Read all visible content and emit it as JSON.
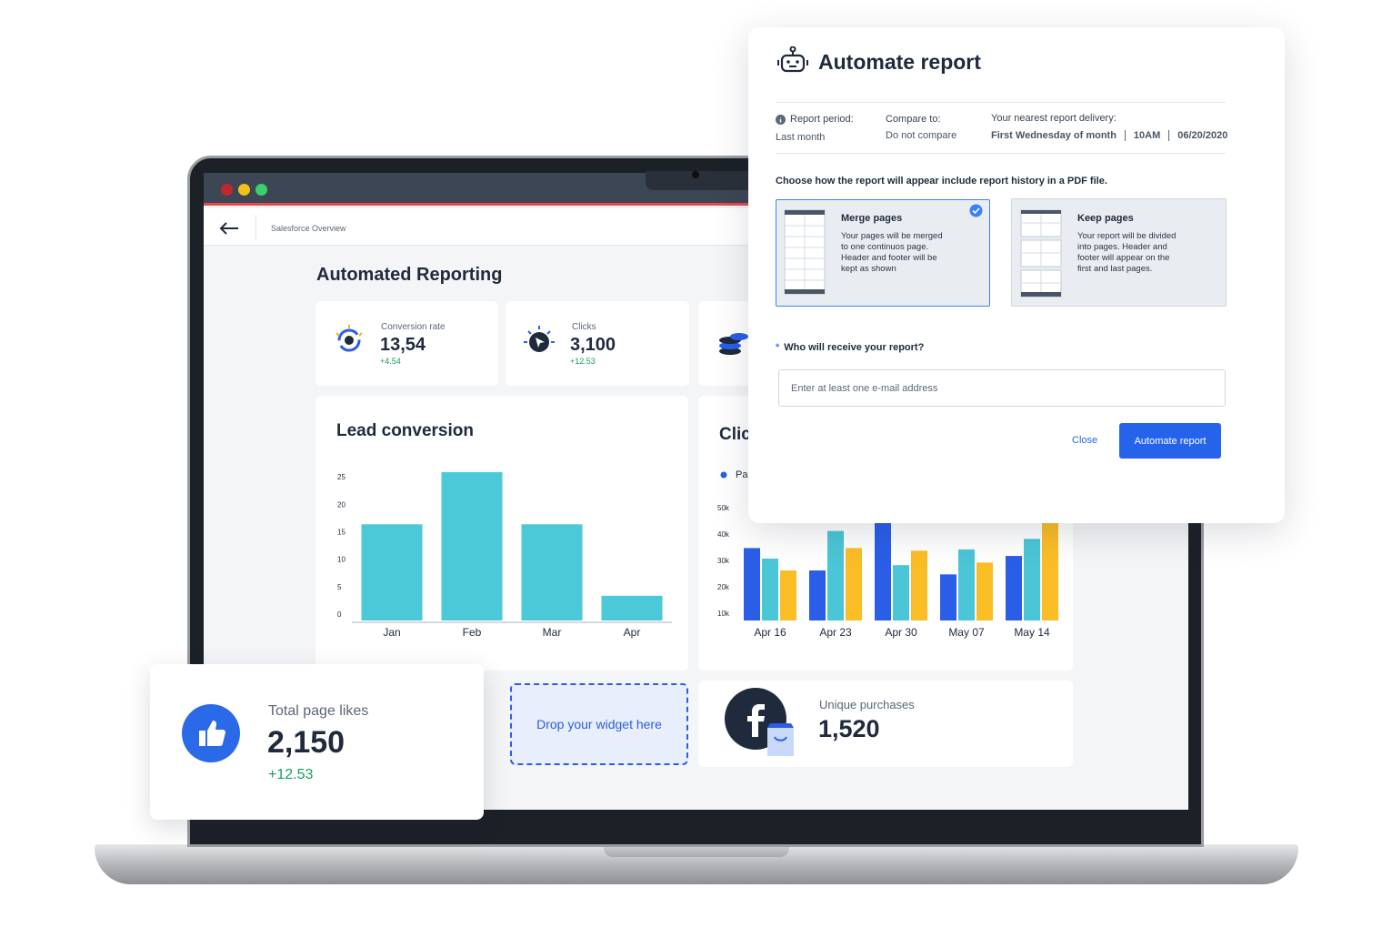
{
  "dashboard": {
    "breadcrumb": "Salesforce Overview",
    "title": "Automated Reporting",
    "kpis": [
      {
        "label": "Conversion rate",
        "value": "13,54",
        "change": "+4.54"
      },
      {
        "label": "Clicks",
        "value": "3,100",
        "change": "+12.53"
      }
    ],
    "lead_chart": {
      "type": "bar",
      "title": "Lead conversion",
      "categories": [
        "Jan",
        "Feb",
        "Mar",
        "Apr"
      ],
      "values": [
        17.5,
        27,
        17.5,
        4.5
      ],
      "color": "#4bc9d8",
      "ylim": [
        0,
        28
      ],
      "yticks": [
        0,
        5,
        10,
        15,
        20,
        25
      ]
    },
    "clicks_chart": {
      "type": "grouped-bar",
      "title": "Clic",
      "categories": [
        "Apr 16",
        "Apr 23",
        "Apr 30",
        "May 07",
        "May 14"
      ],
      "series": [
        {
          "name": "Pa",
          "color": "#2a5ee8",
          "values": [
            35000,
            26500,
            45000,
            25000,
            32000
          ]
        },
        {
          "color": "#4bc6d6",
          "values": [
            31000,
            41500,
            28500,
            34500,
            38500
          ]
        },
        {
          "color": "#fbbd26",
          "values": [
            26500,
            35000,
            34000,
            29500,
            45000
          ]
        }
      ],
      "ylim": [
        7500,
        50000
      ],
      "yticks": [
        {
          "value": 10000,
          "label": "10k"
        },
        {
          "value": 20000,
          "label": "20k"
        },
        {
          "value": 30000,
          "label": "30k"
        },
        {
          "value": 40000,
          "label": "40k"
        },
        {
          "value": 50000,
          "label": "50k"
        }
      ]
    },
    "likes": {
      "label": "Total page likes",
      "value": "2,150",
      "change": "+12.53"
    },
    "drop_zone": "Drop your widget here",
    "purchases": {
      "label": "Unique purchases",
      "value": "1,520"
    }
  },
  "modal": {
    "title": "Automate report",
    "period": {
      "label": "Report period:",
      "value": "Last month"
    },
    "compare": {
      "label": "Compare to:",
      "value": "Do not compare"
    },
    "delivery": {
      "label": "Your nearest report delivery:",
      "day": "First Wednesday of month",
      "time": "10AM",
      "date": "06/20/2020"
    },
    "instruction": "Choose how the report will appear include report history in a PDF file.",
    "options": [
      {
        "title": "Merge pages",
        "description": "Your pages will be merged to one continuos page. Header and footer will be kept as shown"
      },
      {
        "title": "Keep pages",
        "description": "Your report will be divided into pages. Header and footer will appear on the first and last pages."
      }
    ],
    "required_mark": "*",
    "question": "Who will receive your report?",
    "email_placeholder": "Enter at least one e-mail address",
    "close": "Close",
    "submit": "Automate report"
  }
}
